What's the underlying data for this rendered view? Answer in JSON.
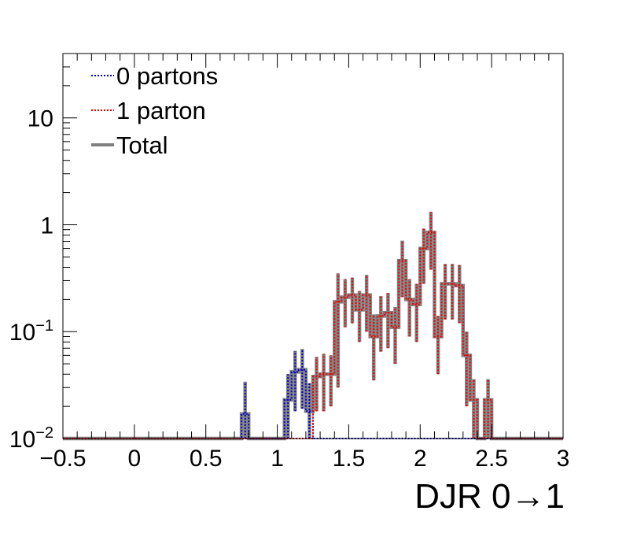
{
  "chart_data": {
    "type": "line",
    "title": "",
    "xlabel": "DJR 0→1",
    "ylabel": "",
    "xlim": [
      -0.5,
      3
    ],
    "ylim": [
      0.01,
      40
    ],
    "yscale": "log",
    "bin_width": 0.05,
    "grid": false,
    "legend_position": "top-left",
    "x_ticks": [
      {
        "value": -0.5,
        "label": "−0.5"
      },
      {
        "value": 0,
        "label": "0"
      },
      {
        "value": 0.5,
        "label": "0.5"
      },
      {
        "value": 1,
        "label": "1"
      },
      {
        "value": 1.5,
        "label": "1.5"
      },
      {
        "value": 2,
        "label": "2"
      },
      {
        "value": 2.5,
        "label": "2.5"
      },
      {
        "value": 3,
        "label": "3"
      }
    ],
    "y_ticks": [
      {
        "value": 0.01,
        "base": "10",
        "exp": "−2"
      },
      {
        "value": 0.1,
        "base": "10",
        "exp": "−1"
      },
      {
        "value": 1,
        "base": "1",
        "exp": ""
      },
      {
        "value": 10,
        "base": "10",
        "exp": ""
      }
    ],
    "series": [
      {
        "name": "0 partons",
        "color": "#0000cc",
        "style": "dotted",
        "bins": [
          {
            "x0": 0.75,
            "x1": 0.8,
            "y": 0.017,
            "err": 0.017
          },
          {
            "x0": 1.05,
            "x1": 1.1,
            "y": 0.023,
            "err": 0.017
          },
          {
            "x0": 1.1,
            "x1": 1.15,
            "y": 0.042,
            "err": 0.024
          },
          {
            "x0": 1.15,
            "x1": 1.2,
            "y": 0.044,
            "err": 0.025
          },
          {
            "x0": 1.2,
            "x1": 1.25,
            "y": 0.018,
            "err": 0.015
          }
        ]
      },
      {
        "name": "1 parton",
        "color": "#ee0000",
        "style": "dotted",
        "bins": [
          {
            "x0": 1.25,
            "x1": 1.3,
            "y": 0.038,
            "err": 0.02
          },
          {
            "x0": 1.3,
            "x1": 1.35,
            "y": 0.04,
            "err": 0.022
          },
          {
            "x0": 1.35,
            "x1": 1.4,
            "y": 0.04,
            "err": 0.02
          },
          {
            "x0": 1.4,
            "x1": 1.45,
            "y": 0.19,
            "err": 0.16
          },
          {
            "x0": 1.45,
            "x1": 1.5,
            "y": 0.21,
            "err": 0.1
          },
          {
            "x0": 1.5,
            "x1": 1.55,
            "y": 0.22,
            "err": 0.1
          },
          {
            "x0": 1.55,
            "x1": 1.6,
            "y": 0.16,
            "err": 0.08
          },
          {
            "x0": 1.6,
            "x1": 1.65,
            "y": 0.22,
            "err": 0.12
          },
          {
            "x0": 1.65,
            "x1": 1.7,
            "y": 0.09,
            "err": 0.055
          },
          {
            "x0": 1.7,
            "x1": 1.75,
            "y": 0.14,
            "err": 0.075
          },
          {
            "x0": 1.75,
            "x1": 1.8,
            "y": 0.15,
            "err": 0.08
          },
          {
            "x0": 1.8,
            "x1": 1.85,
            "y": 0.11,
            "err": 0.06
          },
          {
            "x0": 1.85,
            "x1": 1.9,
            "y": 0.46,
            "err": 0.25
          },
          {
            "x0": 1.9,
            "x1": 1.95,
            "y": 0.2,
            "err": 0.11
          },
          {
            "x0": 1.95,
            "x1": 2.0,
            "y": 0.18,
            "err": 0.1
          },
          {
            "x0": 2.0,
            "x1": 2.05,
            "y": 0.6,
            "err": 0.32
          },
          {
            "x0": 2.05,
            "x1": 2.1,
            "y": 0.85,
            "err": 0.47
          },
          {
            "x0": 2.1,
            "x1": 2.15,
            "y": 0.09,
            "err": 0.05
          },
          {
            "x0": 2.15,
            "x1": 2.2,
            "y": 0.28,
            "err": 0.15
          },
          {
            "x0": 2.2,
            "x1": 2.25,
            "y": 0.28,
            "err": 0.15
          },
          {
            "x0": 2.25,
            "x1": 2.3,
            "y": 0.27,
            "err": 0.15
          },
          {
            "x0": 2.3,
            "x1": 2.35,
            "y": 0.06,
            "err": 0.04
          },
          {
            "x0": 2.35,
            "x1": 2.4,
            "y": 0.023,
            "err": 0.013
          },
          {
            "x0": 2.45,
            "x1": 2.5,
            "y": 0.023,
            "err": 0.013
          }
        ]
      },
      {
        "name": "Total",
        "color": "#808080",
        "style": "solid",
        "bins": []
      }
    ]
  }
}
